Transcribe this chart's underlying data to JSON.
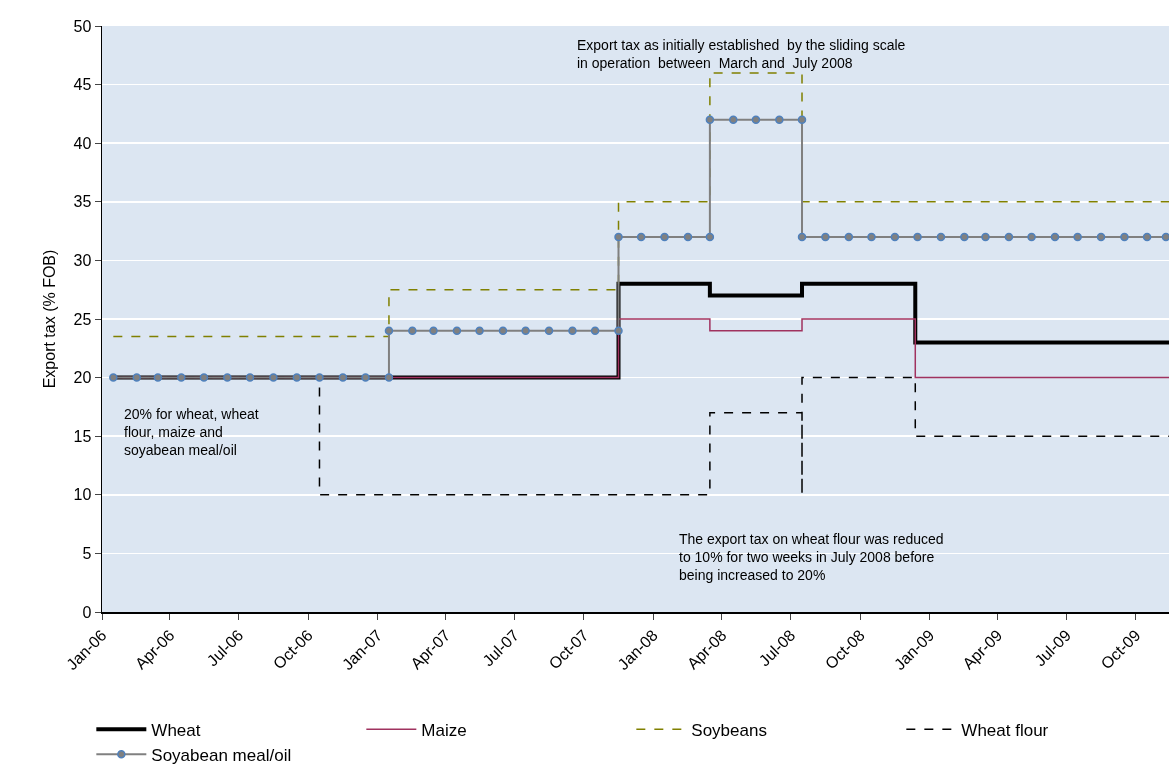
{
  "chart_data": {
    "type": "step",
    "ylabel": "Export tax (% FOB)",
    "xlim": [
      "2006-01-01",
      "2009-11-14"
    ],
    "xticks": [
      {
        "value": "2006-01-01",
        "label": "Jan-06"
      },
      {
        "value": "2006-04-01",
        "label": "Apr-06"
      },
      {
        "value": "2006-07-01",
        "label": "Jul-06"
      },
      {
        "value": "2006-10-01",
        "label": "Oct-06"
      },
      {
        "value": "2007-01-01",
        "label": "Jan-07"
      },
      {
        "value": "2007-04-01",
        "label": "Apr-07"
      },
      {
        "value": "2007-07-01",
        "label": "Jul-07"
      },
      {
        "value": "2007-10-01",
        "label": "Oct-07"
      },
      {
        "value": "2008-01-01",
        "label": "Jan-08"
      },
      {
        "value": "2008-04-01",
        "label": "Apr-08"
      },
      {
        "value": "2008-07-01",
        "label": "Jul-08"
      },
      {
        "value": "2008-10-01",
        "label": "Oct-08"
      },
      {
        "value": "2009-01-01",
        "label": "Jan-09"
      },
      {
        "value": "2009-04-01",
        "label": "Apr-09"
      },
      {
        "value": "2009-07-01",
        "label": "Jul-09"
      },
      {
        "value": "2009-10-01",
        "label": "Oct-09"
      }
    ],
    "ylim": [
      0,
      50
    ],
    "yticks": [
      0,
      5,
      10,
      15,
      20,
      25,
      30,
      35,
      40,
      45,
      50
    ],
    "grid": "y",
    "legend": "bottom",
    "series": [
      {
        "name": "Wheat",
        "type": "step",
        "color": "#000000",
        "line_style": "solid",
        "x": [
          "2006-01-16",
          "2007-11-16",
          "2008-03-16",
          "2008-07-16",
          "2008-12-13",
          "2009-11-14"
        ],
        "values": [
          20,
          28,
          27,
          28,
          23,
          23
        ]
      },
      {
        "name": "Maize",
        "type": "step",
        "color": "#a0325f",
        "line_style": "solid",
        "x": [
          "2006-01-16",
          "2007-11-16",
          "2008-03-16",
          "2008-07-16",
          "2008-12-13",
          "2009-11-14"
        ],
        "values": [
          20,
          25,
          24,
          25,
          20,
          20
        ]
      },
      {
        "name": "Soybeans",
        "type": "step",
        "color": "#808000",
        "line_style": "dashed",
        "x": [
          "2006-01-16",
          "2007-01-16",
          "2007-11-16",
          "2008-03-16",
          "2008-07-16",
          "2009-11-14"
        ],
        "values": [
          23.5,
          27.5,
          35,
          46,
          35,
          35
        ]
      },
      {
        "name": "Wheat flour",
        "type": "step",
        "color": "#000000",
        "line_style": "dashed",
        "x": [
          "2006-01-16",
          "2006-10-16",
          "2008-03-16",
          "2008-07-16",
          "2008-07-16",
          "2008-12-13",
          "2009-11-14"
        ],
        "values": [
          20,
          10,
          17,
          10,
          20,
          15,
          15
        ]
      },
      {
        "name": "Soyabean meal/oil",
        "type": "line",
        "color": "#808080",
        "marker": "circle",
        "line_style": "solid",
        "x": [
          "2006-01-16",
          "2006-02-16",
          "2006-03-16",
          "2006-04-16",
          "2006-05-16",
          "2006-06-16",
          "2006-07-16",
          "2006-08-16",
          "2006-09-16",
          "2006-10-16",
          "2006-11-16",
          "2006-12-16",
          "2007-01-16",
          "2007-01-16",
          "2007-02-16",
          "2007-03-16",
          "2007-04-16",
          "2007-05-16",
          "2007-06-16",
          "2007-07-16",
          "2007-08-16",
          "2007-09-16",
          "2007-10-16",
          "2007-11-16",
          "2007-11-16",
          "2007-12-16",
          "2008-01-16",
          "2008-02-16",
          "2008-03-16",
          "2008-03-16",
          "2008-04-16",
          "2008-05-16",
          "2008-06-16",
          "2008-07-16",
          "2008-07-16",
          "2008-08-16",
          "2008-09-16",
          "2008-10-16",
          "2008-11-16",
          "2008-12-16",
          "2009-01-16",
          "2009-02-16",
          "2009-03-16",
          "2009-04-16",
          "2009-05-16",
          "2009-06-16",
          "2009-07-16",
          "2009-08-16",
          "2009-09-16",
          "2009-10-16",
          "2009-11-10"
        ],
        "values": [
          20,
          20,
          20,
          20,
          20,
          20,
          20,
          20,
          20,
          20,
          20,
          20,
          20,
          24,
          24,
          24,
          24,
          24,
          24,
          24,
          24,
          24,
          24,
          24,
          32,
          32,
          32,
          32,
          32,
          42,
          42,
          42,
          42,
          42,
          32,
          32,
          32,
          32,
          32,
          32,
          32,
          32,
          32,
          32,
          32,
          32,
          32,
          32,
          32,
          32,
          32
        ]
      }
    ],
    "annotations": [
      "Export tax as initially established  by the sliding scale\nin operation  between  March and  July 2008",
      "20% for wheat, wheat\nflour, maize and\nsoyabean meal/oil",
      "The export tax on wheat flour was reduced\nto 10% for two weeks in July 2008 before\nbeing increased to 20%"
    ]
  }
}
